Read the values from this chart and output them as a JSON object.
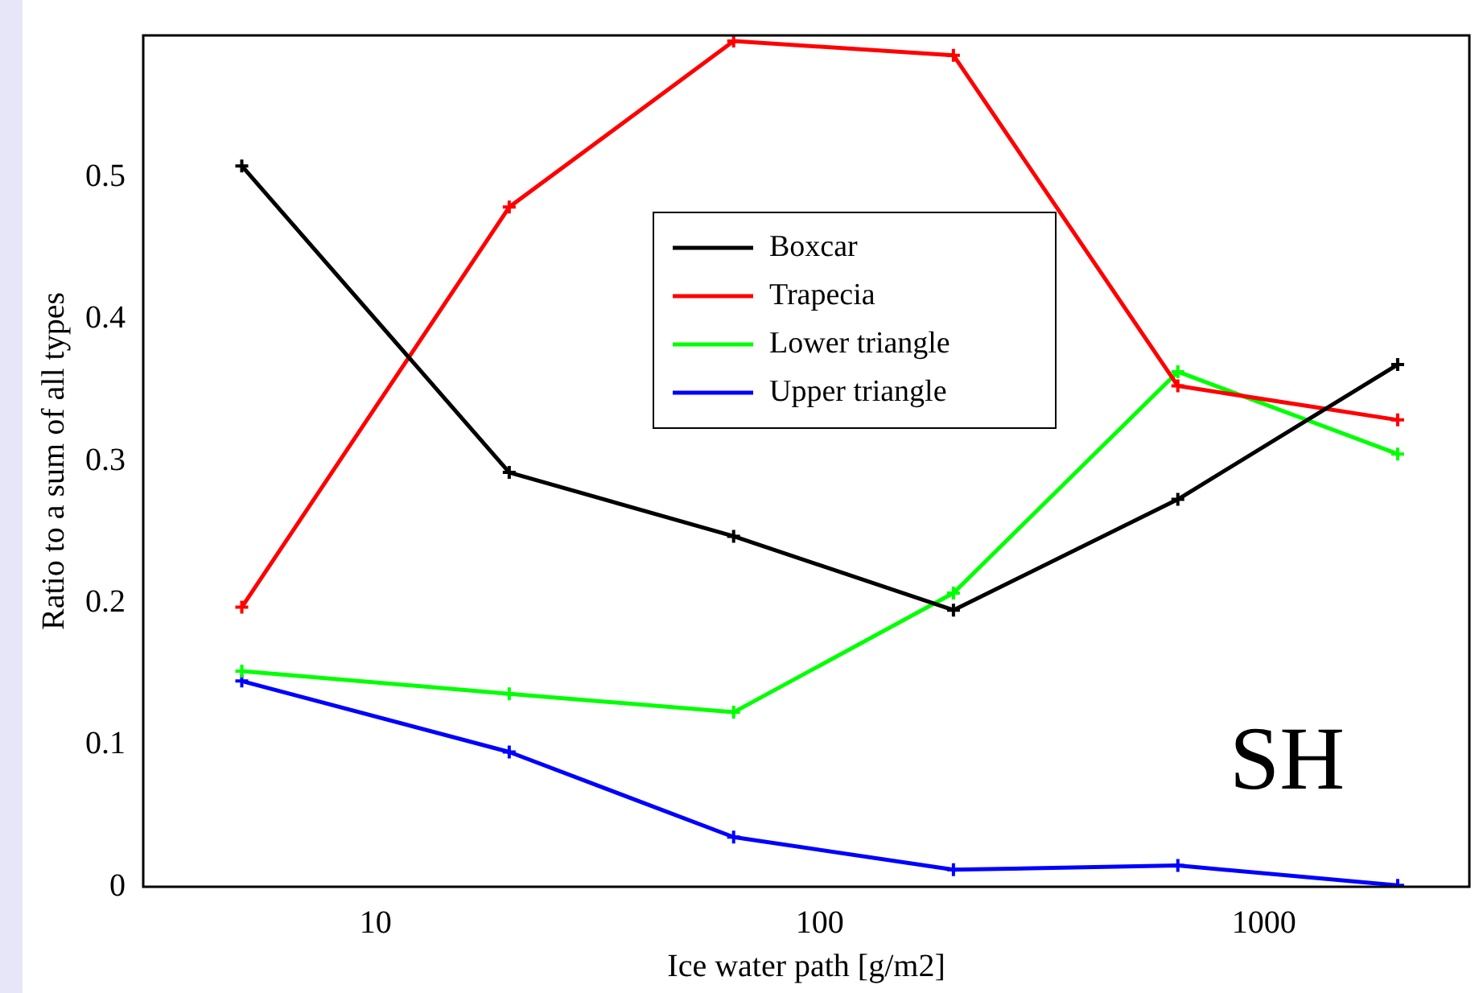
{
  "chart_data": {
    "type": "line",
    "xlabel": "Ice water path [g/m2]",
    "ylabel": "Ratio to a sum of all types",
    "x": [
      5,
      20,
      64,
      200,
      640,
      2000
    ],
    "series": [
      {
        "name": "Boxcar",
        "color": "#000000",
        "values": [
          0.508,
          0.292,
          0.247,
          0.195,
          0.273,
          0.368
        ]
      },
      {
        "name": "Trapecia",
        "color": "#ff0000",
        "values": [
          0.197,
          0.479,
          0.596,
          0.586,
          0.353,
          0.329
        ]
      },
      {
        "name": "Lower triangle",
        "color": "#00ff00",
        "values": [
          0.152,
          0.136,
          0.123,
          0.207,
          0.363,
          0.305
        ]
      },
      {
        "name": "Upper triangle",
        "color": "#0000ff",
        "values": [
          0.145,
          0.095,
          0.035,
          0.012,
          0.015,
          0.001
        ]
      }
    ],
    "log": "x",
    "xlim": [
      3,
      2900
    ],
    "xticks": [
      10,
      100,
      1000
    ],
    "ylim": [
      0,
      0.6
    ],
    "yticks": [
      0,
      0.1,
      0.2,
      0.3,
      0.4,
      0.5
    ],
    "grid": false,
    "legend": "top",
    "marker": "cross",
    "line_style": "solid",
    "annotations": [
      {
        "text": "SH"
      }
    ]
  }
}
